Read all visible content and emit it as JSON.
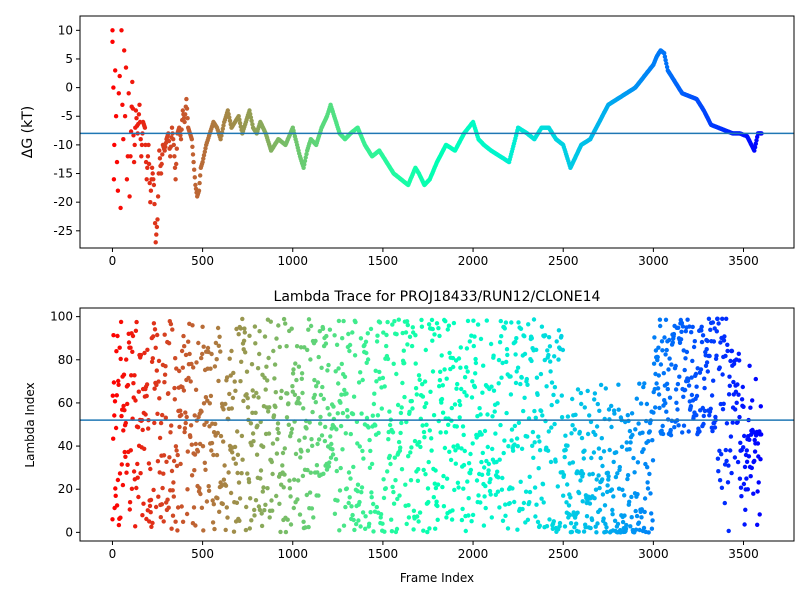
{
  "chart_data": [
    {
      "type": "scatter",
      "title": "",
      "xlabel": "",
      "ylabel": "ΔG (kT)",
      "xlim": [
        -180,
        3780
      ],
      "ylim": [
        -28,
        12.5
      ],
      "xticks": [
        0,
        500,
        1000,
        1500,
        2000,
        2500,
        3000,
        3500
      ],
      "yticks": [
        10,
        5,
        0,
        -5,
        -10,
        -15,
        -20,
        -25
      ],
      "hline": -8,
      "hline_color": "#1f77b4",
      "colormap": "rainbow",
      "colormap_reversed": true,
      "trace_points": [
        [
          0,
          10
        ],
        [
          0,
          8
        ],
        [
          5,
          0
        ],
        [
          8,
          -16
        ],
        [
          10,
          -10
        ],
        [
          15,
          3
        ],
        [
          20,
          -5
        ],
        [
          25,
          -13
        ],
        [
          30,
          -18
        ],
        [
          35,
          -1
        ],
        [
          40,
          2
        ],
        [
          45,
          -21
        ],
        [
          50,
          10
        ],
        [
          55,
          -3
        ],
        [
          60,
          -9
        ],
        [
          65,
          6.5
        ],
        [
          70,
          -5
        ],
        [
          75,
          3.5
        ],
        [
          80,
          -16
        ],
        [
          85,
          -12
        ],
        [
          90,
          -1
        ],
        [
          95,
          -19
        ],
        [
          100,
          -12
        ],
        [
          110,
          1
        ],
        [
          120,
          -13
        ],
        [
          130,
          -4
        ],
        [
          140,
          -8
        ],
        [
          150,
          -3
        ],
        [
          160,
          -12
        ],
        [
          170,
          -6
        ],
        [
          180,
          -7
        ],
        [
          190,
          -16
        ],
        [
          200,
          -10
        ],
        [
          210,
          -20
        ],
        [
          220,
          -14
        ],
        [
          230,
          -17
        ],
        [
          240,
          -27
        ],
        [
          250,
          -23
        ],
        [
          260,
          -11
        ],
        [
          270,
          -15
        ],
        [
          280,
          -10
        ],
        [
          290,
          -11
        ],
        [
          300,
          -9
        ],
        [
          310,
          -8
        ],
        [
          320,
          -12
        ],
        [
          330,
          -7
        ],
        [
          340,
          -10
        ],
        [
          350,
          -16
        ],
        [
          360,
          -8
        ],
        [
          370,
          -7
        ],
        [
          380,
          -9
        ],
        [
          390,
          -4
        ],
        [
          400,
          -6
        ],
        [
          410,
          -2
        ],
        [
          420,
          -7
        ],
        [
          430,
          -8
        ],
        [
          440,
          -9
        ],
        [
          450,
          -13
        ],
        [
          460,
          -17
        ],
        [
          470,
          -19
        ],
        [
          480,
          -18
        ],
        [
          490,
          -14
        ],
        [
          500,
          -13
        ],
        [
          520,
          -10
        ],
        [
          540,
          -8
        ],
        [
          560,
          -6
        ],
        [
          580,
          -7
        ],
        [
          600,
          -9
        ],
        [
          620,
          -6
        ],
        [
          640,
          -4
        ],
        [
          660,
          -7
        ],
        [
          680,
          -6
        ],
        [
          700,
          -5
        ],
        [
          720,
          -8
        ],
        [
          740,
          -6
        ],
        [
          760,
          -4
        ],
        [
          780,
          -7
        ],
        [
          800,
          -8
        ],
        [
          820,
          -6
        ],
        [
          850,
          -8
        ],
        [
          880,
          -11
        ],
        [
          920,
          -9
        ],
        [
          960,
          -10
        ],
        [
          1000,
          -7
        ],
        [
          1040,
          -12
        ],
        [
          1060,
          -14
        ],
        [
          1080,
          -11
        ],
        [
          1100,
          -9
        ],
        [
          1130,
          -10
        ],
        [
          1160,
          -7
        ],
        [
          1190,
          -5
        ],
        [
          1210,
          -3
        ],
        [
          1230,
          -5
        ],
        [
          1260,
          -8
        ],
        [
          1290,
          -9
        ],
        [
          1320,
          -8
        ],
        [
          1360,
          -7
        ],
        [
          1400,
          -10
        ],
        [
          1440,
          -12
        ],
        [
          1480,
          -11
        ],
        [
          1520,
          -13
        ],
        [
          1560,
          -15
        ],
        [
          1600,
          -16
        ],
        [
          1640,
          -17
        ],
        [
          1680,
          -14
        ],
        [
          1700,
          -15
        ],
        [
          1730,
          -17
        ],
        [
          1760,
          -16
        ],
        [
          1800,
          -13
        ],
        [
          1850,
          -10
        ],
        [
          1900,
          -11
        ],
        [
          1950,
          -8
        ],
        [
          2000,
          -6
        ],
        [
          2030,
          -9
        ],
        [
          2060,
          -10
        ],
        [
          2100,
          -11
        ],
        [
          2150,
          -12
        ],
        [
          2200,
          -13
        ],
        [
          2250,
          -7
        ],
        [
          2300,
          -8
        ],
        [
          2340,
          -9
        ],
        [
          2380,
          -7
        ],
        [
          2420,
          -7
        ],
        [
          2460,
          -9
        ],
        [
          2500,
          -10
        ],
        [
          2540,
          -14
        ],
        [
          2570,
          -12
        ],
        [
          2600,
          -10
        ],
        [
          2650,
          -9
        ],
        [
          2700,
          -6
        ],
        [
          2750,
          -3
        ],
        [
          2800,
          -2
        ],
        [
          2850,
          -1
        ],
        [
          2900,
          0
        ],
        [
          2950,
          2
        ],
        [
          3000,
          4
        ],
        [
          3020,
          5.5
        ],
        [
          3040,
          6.5
        ],
        [
          3060,
          6
        ],
        [
          3080,
          3
        ],
        [
          3120,
          1
        ],
        [
          3160,
          -1
        ],
        [
          3200,
          -1.5
        ],
        [
          3240,
          -2
        ],
        [
          3280,
          -4
        ],
        [
          3320,
          -6.5
        ],
        [
          3360,
          -7
        ],
        [
          3400,
          -7.5
        ],
        [
          3440,
          -8
        ],
        [
          3480,
          -8
        ],
        [
          3520,
          -8.5
        ],
        [
          3560,
          -11
        ],
        [
          3580,
          -8
        ],
        [
          3600,
          -8
        ]
      ]
    },
    {
      "type": "scatter",
      "title": "Lambda Trace for PROJ18433/RUN12/CLONE14",
      "xlabel": "Frame Index",
      "ylabel": "Lambda Index",
      "xlim": [
        -180,
        3780
      ],
      "ylim": [
        -4,
        104
      ],
      "xticks": [
        0,
        500,
        1000,
        1500,
        2000,
        2500,
        3000,
        3500
      ],
      "yticks": [
        0,
        20,
        40,
        60,
        80,
        100
      ],
      "hline": 52,
      "hline_color": "#1f77b4",
      "colormap": "rainbow",
      "colormap_reversed": true,
      "n_points": 3600,
      "value_range": [
        0,
        99
      ]
    }
  ]
}
